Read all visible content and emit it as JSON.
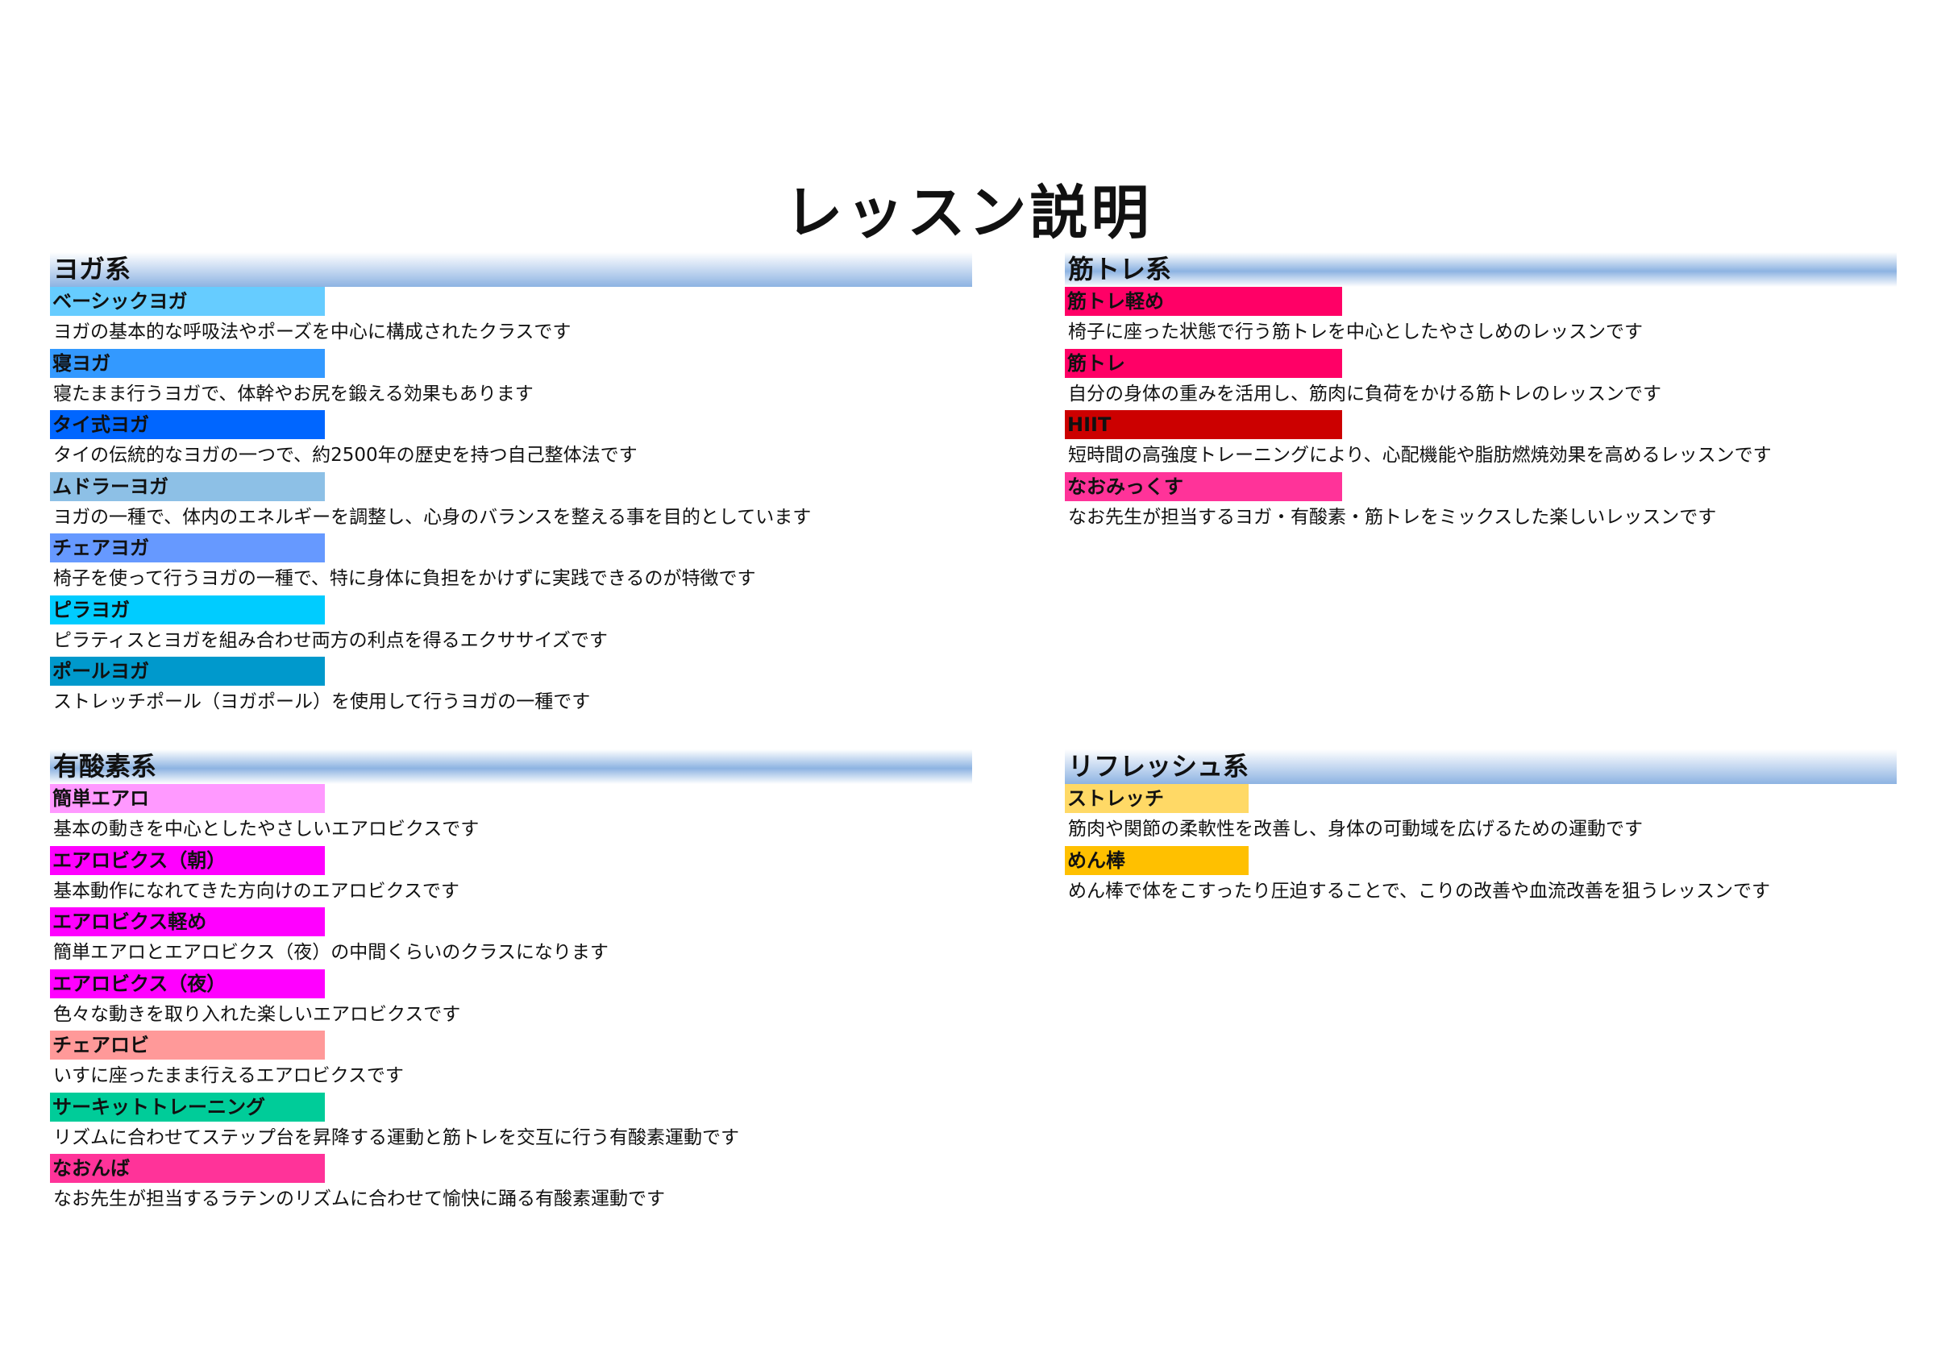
{
  "title": "レッスン説明",
  "sections": [
    {
      "id": "yoga",
      "title": "ヨガ系",
      "items": [
        {
          "label": "ベーシックヨガ",
          "color": "#66ccff",
          "desc": "ヨガの基本的な呼吸法やポーズを中心に構成されたクラスです"
        },
        {
          "label": "寝ヨガ",
          "color": "#3399ff",
          "desc": "寝たまま行うヨガで、体幹やお尻を鍛える効果もあります"
        },
        {
          "label": "タイ式ヨガ",
          "color": "#0066ff",
          "desc": "タイの伝統的なヨガの一つで、約2500年の歴史を持つ自己整体法です"
        },
        {
          "label": "ムドラーヨガ",
          "color": "#8dc0e6",
          "desc": "ヨガの一種で、体内のエネルギーを調整し、心身のバランスを整える事を目的としています"
        },
        {
          "label": "チェアヨガ",
          "color": "#6699ff",
          "desc": "椅子を使って行うヨガの一種で、特に身体に負担をかけずに実践できるのが特徴です"
        },
        {
          "label": "ピラヨガ",
          "color": "#00ccff",
          "desc": "ピラティスとヨガを組み合わせ両方の利点を得るエクササイズです"
        },
        {
          "label": "ポールヨガ",
          "color": "#0099cc",
          "desc": "ストレッチポール（ヨガポール）を使用して行うヨガの一種です"
        }
      ]
    },
    {
      "id": "muscle",
      "title": "筋トレ系",
      "items": [
        {
          "label": "筋トレ軽め",
          "color": "#ff0066",
          "desc": "椅子に座った状態で行う筋トレを中心としたやさしめのレッスンです"
        },
        {
          "label": "筋トレ",
          "color": "#ff0066",
          "desc": "自分の身体の重みを活用し、筋肉に負荷をかける筋トレのレッスンです"
        },
        {
          "label": "HIIT",
          "color": "#cc0000",
          "desc": "短時間の高強度トレーニングにより、心配機能や脂肪燃焼効果を高めるレッスンです"
        },
        {
          "label": "なおみっくす",
          "color": "#ff3399",
          "desc": "なお先生が担当するヨガ・有酸素・筋トレをミックスした楽しいレッスンです"
        }
      ]
    },
    {
      "id": "aerobic",
      "title": "有酸素系",
      "items": [
        {
          "label": "簡単エアロ",
          "color": "#ff99ff",
          "desc": "基本の動きを中心としたやさしいエアロビクスです"
        },
        {
          "label": "エアロビクス（朝）",
          "color": "#ff00ff",
          "desc": "基本動作になれてきた方向けのエアロビクスです"
        },
        {
          "label": "エアロビクス軽め",
          "color": "#ff00ff",
          "desc": "簡単エアロとエアロビクス（夜）の中間くらいのクラスになります"
        },
        {
          "label": "エアロビクス（夜）",
          "color": "#ff00ff",
          "desc": "色々な動きを取り入れた楽しいエアロビクスです"
        },
        {
          "label": "チェアロビ",
          "color": "#ff9999",
          "desc": "いすに座ったまま行えるエアロビクスです"
        },
        {
          "label": "サーキットトレーニング",
          "color": "#00cc99",
          "desc": "リズムに合わせてステップ台を昇降する運動と筋トレを交互に行う有酸素運動です"
        },
        {
          "label": "なおんば",
          "color": "#ff3399",
          "desc": "なお先生が担当するラテンのリズムに合わせて愉快に踊る有酸素運動です"
        }
      ]
    },
    {
      "id": "refresh",
      "title": "リフレッシュ系",
      "items": [
        {
          "label": "ストレッチ",
          "color": "#ffd966",
          "desc": "筋肉や関節の柔軟性を改善し、身体の可動域を広げるための運動です"
        },
        {
          "label": "めん棒",
          "color": "#ffc000",
          "desc": "めん棒で体をこすったり圧迫することで、こりの改善や血流改善を狙うレッスンです"
        }
      ]
    }
  ]
}
